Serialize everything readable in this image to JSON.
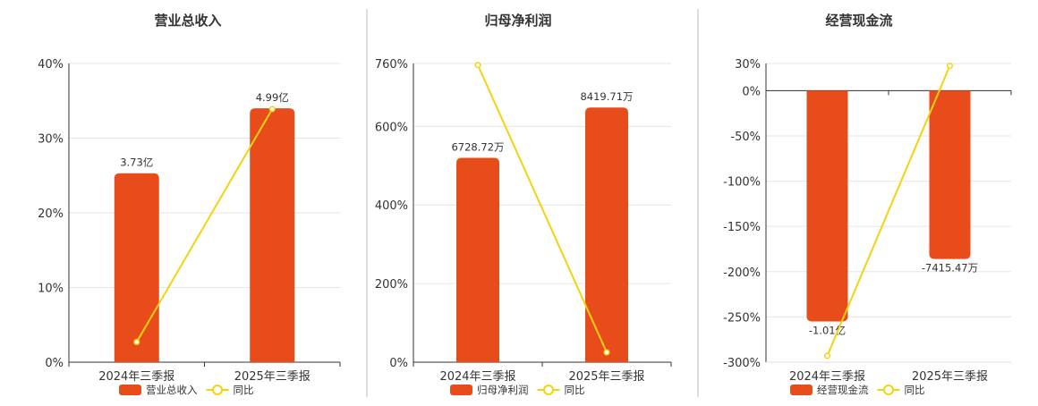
{
  "colors": {
    "bar": "#e84c1a",
    "line": "#f5d20f",
    "grid": "#e6e6e6",
    "axis": "#333333",
    "divider": "#bbbbbb"
  },
  "chart_data": [
    {
      "type": "bar",
      "title": "营业总收入",
      "categories": [
        "2024年三季报",
        "2025年三季报"
      ],
      "ylim": [
        0,
        40
      ],
      "yticks": [
        "0%",
        "10%",
        "20%",
        "30%",
        "40%"
      ],
      "ytick_values": [
        0,
        10,
        20,
        30,
        40
      ],
      "series": [
        {
          "name": "营业总收入",
          "kind": "bar",
          "values": [
            25.3,
            34.0
          ],
          "labels": [
            "3.73亿",
            "4.99亿"
          ]
        },
        {
          "name": "同比",
          "kind": "line",
          "values": [
            2.7,
            33.9
          ]
        }
      ],
      "grid": true,
      "legend": "bottom"
    },
    {
      "type": "bar",
      "title": "归母净利润",
      "categories": [
        "2024年三季报",
        "2025年三季报"
      ],
      "ylim": [
        0,
        760
      ],
      "yticks": [
        "0%",
        "200%",
        "400%",
        "600%",
        "760%"
      ],
      "ytick_values": [
        0,
        200,
        400,
        600,
        760
      ],
      "series": [
        {
          "name": "归母净利润",
          "kind": "bar",
          "values": [
            520,
            648
          ],
          "labels": [
            "6728.72万",
            "8419.71万"
          ]
        },
        {
          "name": "同比",
          "kind": "line",
          "values": [
            756,
            25
          ]
        }
      ],
      "grid": true,
      "legend": "bottom"
    },
    {
      "type": "bar",
      "title": "经营现金流",
      "categories": [
        "2024年三季报",
        "2025年三季报"
      ],
      "ylim": [
        -300,
        30
      ],
      "yticks": [
        "-300%",
        "-250%",
        "-200%",
        "-150%",
        "-100%",
        "-50%",
        "0%",
        "30%"
      ],
      "ytick_values": [
        -300,
        -250,
        -200,
        -150,
        -100,
        -50,
        0,
        30
      ],
      "series": [
        {
          "name": "经营现金流",
          "kind": "bar",
          "values": [
            -255,
            -186
          ],
          "labels": [
            "-1.01亿",
            "-7415.47万"
          ]
        },
        {
          "name": "同比",
          "kind": "line",
          "values": [
            -293,
            27.5
          ]
        }
      ],
      "grid": true,
      "legend": "bottom"
    }
  ]
}
